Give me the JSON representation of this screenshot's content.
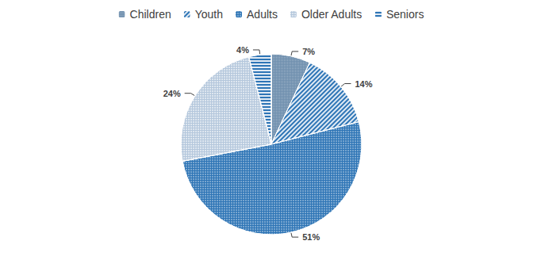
{
  "chart_data": {
    "type": "pie",
    "categories": [
      "Children",
      "Youth",
      "Adults",
      "Older Adults",
      "Seniors"
    ],
    "values": [
      7,
      14,
      51,
      24,
      4
    ],
    "value_labels": [
      "7%",
      "14%",
      "51%",
      "24%",
      "4%"
    ],
    "colors": [
      "#6f8fae",
      "#2e75b6",
      "#2e75b6",
      "#b4c7dc",
      "#2e75b6"
    ],
    "data_labels": true,
    "legend": "top"
  }
}
